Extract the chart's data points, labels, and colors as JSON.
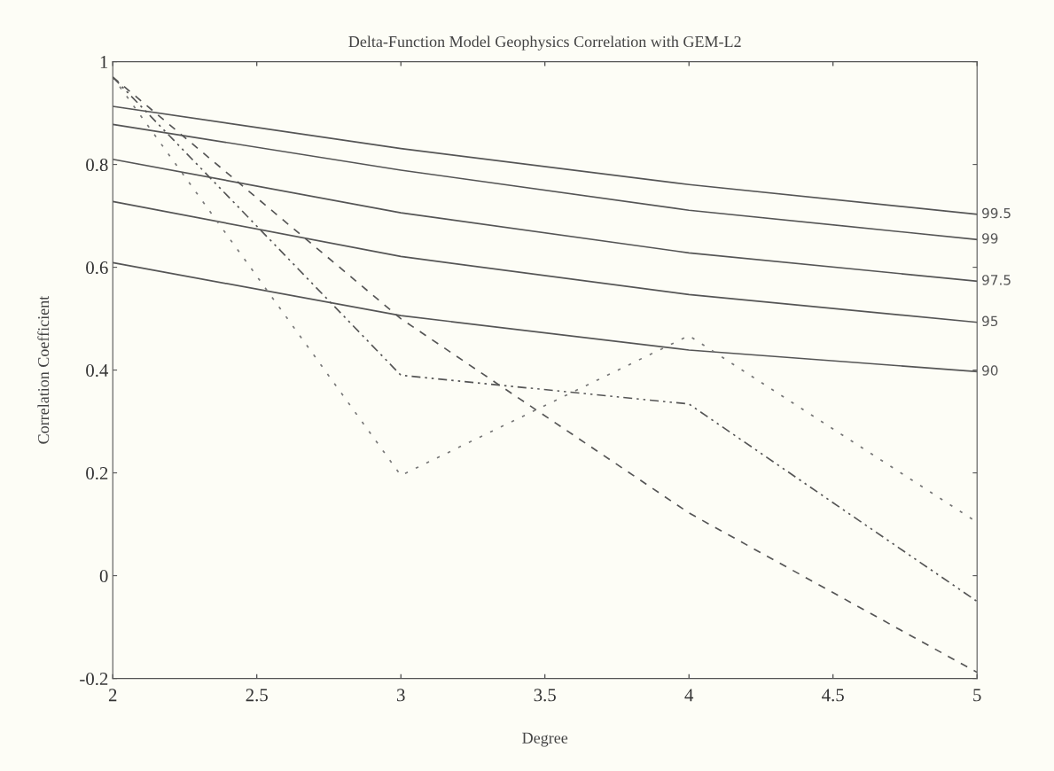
{
  "chart_data": {
    "type": "line",
    "title": "Delta-Function Model Geophysics Correlation with GEM-L2",
    "xlabel": "Degree",
    "ylabel": "Correlation Coefficient",
    "x": [
      2,
      3,
      4,
      5
    ],
    "xlim": [
      2,
      5
    ],
    "xticks": [
      2,
      {
        "value": 2.5,
        "label": "2.5"
      },
      3,
      {
        "value": 3.5,
        "label": "3.5"
      },
      4,
      {
        "value": 4.5,
        "label": "4.5"
      },
      5
    ],
    "ylim": [
      -0.2,
      1
    ],
    "yticks": [
      {
        "value": -0.2,
        "label": "-0.2"
      },
      0,
      {
        "value": 0.2,
        "label": "0.2"
      },
      {
        "value": 0.4,
        "label": "0.4"
      },
      {
        "value": 0.6,
        "label": "0.6"
      },
      {
        "value": 0.8,
        "label": "0.8"
      },
      1
    ],
    "grid": false,
    "legend": "right",
    "tick_labels": "xy",
    "series": [
      {
        "name": "99.5",
        "color": "#555555",
        "line_style": "solid",
        "values": [
          0.913,
          0.831,
          0.761,
          0.703
        ]
      },
      {
        "name": "99",
        "color": "#555555",
        "line_style": "solid",
        "values": [
          0.878,
          0.789,
          0.711,
          0.654
        ]
      },
      {
        "name": "97.5",
        "color": "#555555",
        "line_style": "solid",
        "values": [
          0.81,
          0.706,
          0.628,
          0.573
        ]
      },
      {
        "name": "95",
        "color": "#555555",
        "line_style": "solid",
        "values": [
          0.728,
          0.621,
          0.547,
          0.493
        ]
      },
      {
        "name": "90",
        "color": "#555555",
        "line_style": "solid",
        "values": [
          0.609,
          0.506,
          0.439,
          0.397
        ]
      },
      {
        "color": "#555555",
        "line_style": "dashed",
        "values": [
          0.97,
          0.5,
          0.122,
          -0.188
        ]
      },
      {
        "color": "#777777",
        "line_style": "dotted",
        "values": [
          0.97,
          0.195,
          0.467,
          0.104
        ]
      },
      {
        "color": "#555555",
        "line_style": "dashdot",
        "values": [
          0.97,
          0.39,
          0.334,
          -0.05
        ]
      }
    ]
  }
}
